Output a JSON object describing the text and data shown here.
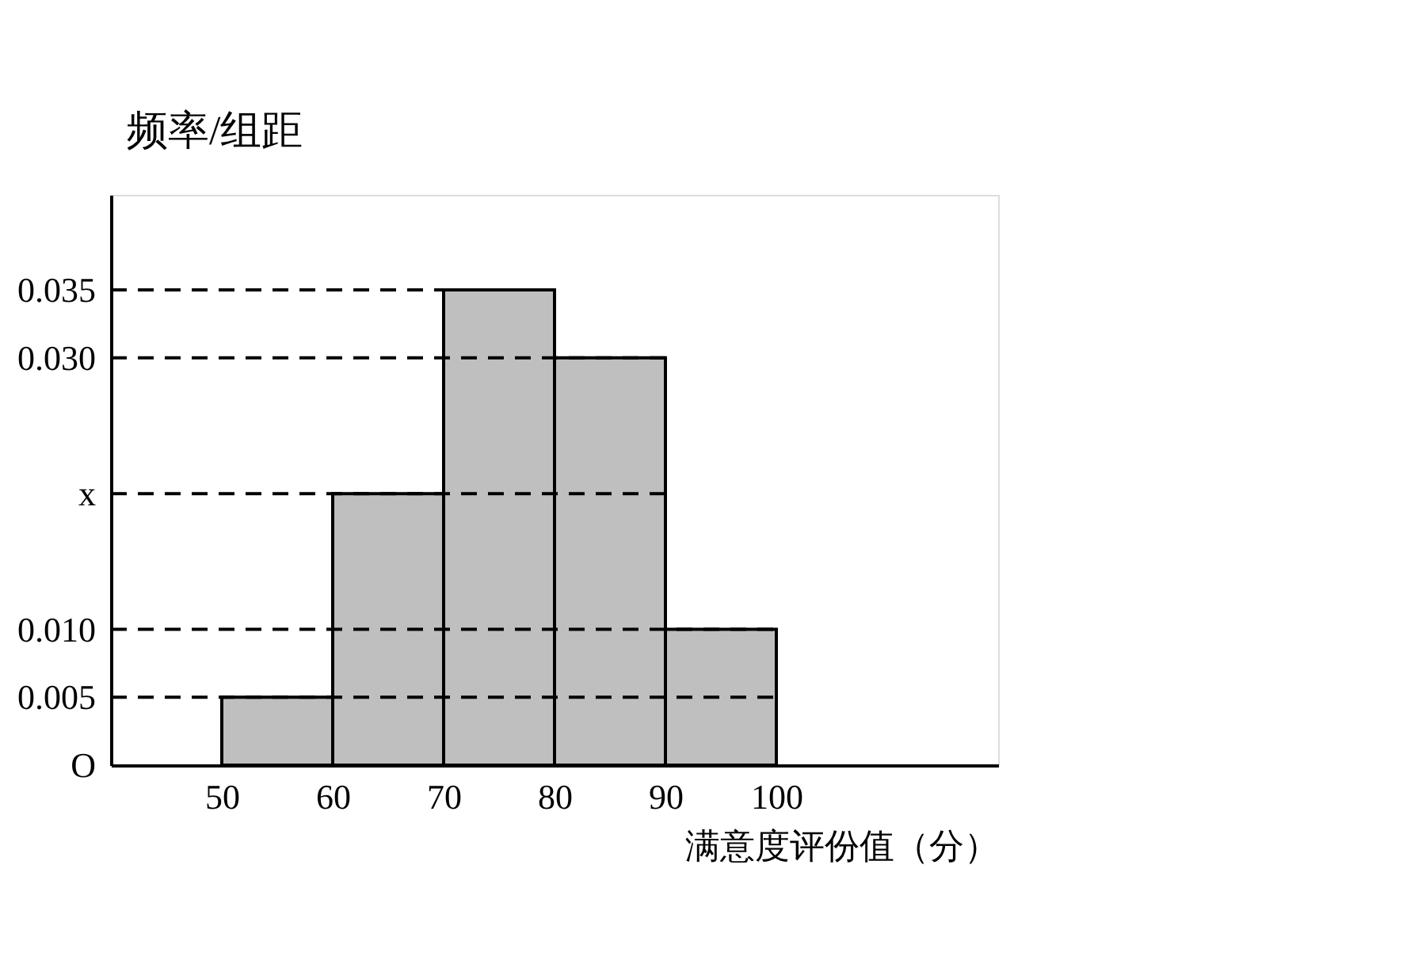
{
  "chart_data": {
    "type": "histogram",
    "bins": [
      50,
      60,
      70,
      80,
      90,
      100
    ],
    "values": [
      0.005,
      0.02,
      0.035,
      0.03,
      0.01
    ],
    "color": "#bfbfbf",
    "xlabel": "满意度评份值（分）",
    "ylabel": "频率/组距",
    "xlim": [
      40,
      120
    ],
    "ylim": [
      0,
      0.042
    ],
    "xticks": [
      50,
      60,
      70,
      80,
      90,
      100
    ],
    "yticks": [
      {
        "value": 0,
        "label": "O"
      },
      {
        "value": 0.005,
        "label": "0.005"
      },
      {
        "value": 0.01,
        "label": "0.010"
      },
      {
        "value": 0.02,
        "label": "x"
      },
      {
        "value": 0.03,
        "label": "0.030"
      },
      {
        "value": 0.035,
        "label": "0.035"
      }
    ],
    "ref_lines": [
      {
        "axis": "y",
        "value": 0.005,
        "line_style": "dashed"
      },
      {
        "axis": "y",
        "value": 0.01,
        "line_style": "dashed"
      },
      {
        "axis": "y",
        "value": 0.02,
        "line_style": "dashed"
      },
      {
        "axis": "y",
        "value": 0.03,
        "line_style": "dashed"
      },
      {
        "axis": "y",
        "value": 0.035,
        "line_style": "dashed"
      }
    ]
  }
}
